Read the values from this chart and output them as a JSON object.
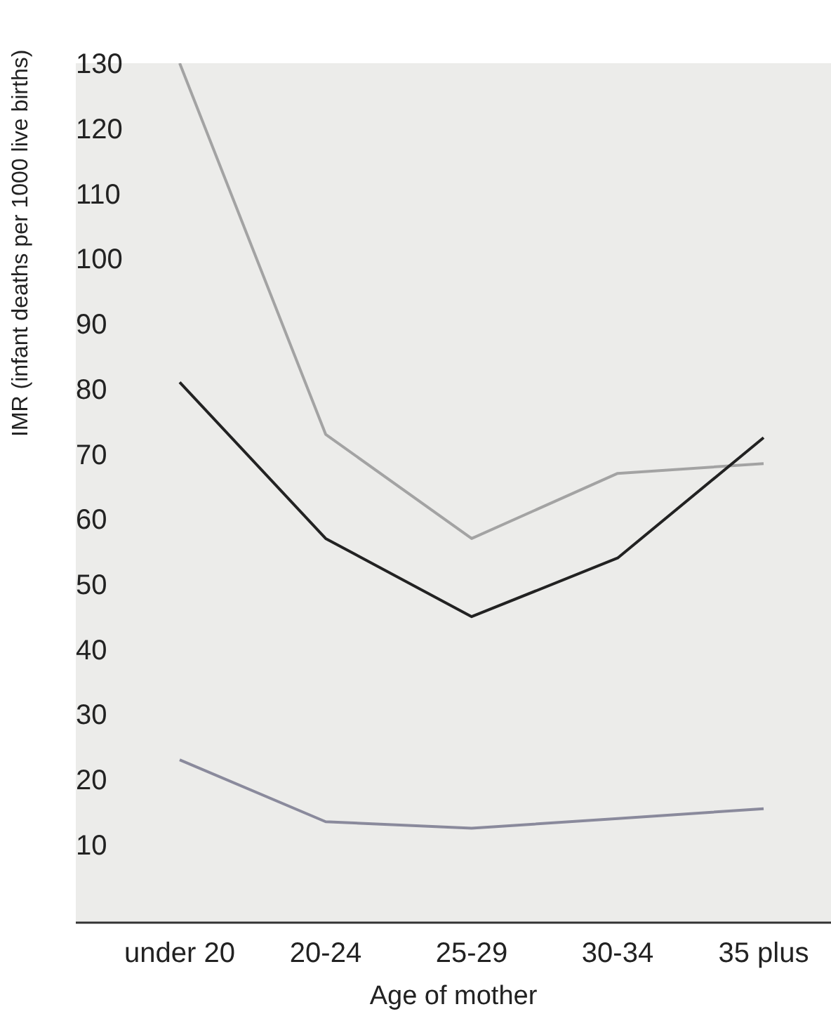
{
  "chart_data": {
    "type": "line",
    "xlabel": "Age of mother",
    "ylabel": "IMR (infant deaths per 1000 live births)",
    "categories": [
      "under 20",
      "20-24",
      "25-29",
      "30-34",
      "35 plus"
    ],
    "series": [
      {
        "color": "#a3a3a3",
        "values": [
          130,
          73,
          57,
          67,
          68.5
        ]
      },
      {
        "color": "#222222",
        "values": [
          81,
          57,
          45,
          54,
          72.5
        ]
      },
      {
        "color": "#8a8a9c",
        "values": [
          23,
          13.5,
          12.5,
          14,
          15.5
        ]
      }
    ],
    "ylim": [
      -2,
      130
    ],
    "yticks": [
      10,
      20,
      30,
      40,
      50,
      60,
      70,
      80,
      90,
      100,
      110,
      120,
      130
    ],
    "grid": false,
    "legend": false,
    "marker": "none",
    "line_style": "solid"
  }
}
